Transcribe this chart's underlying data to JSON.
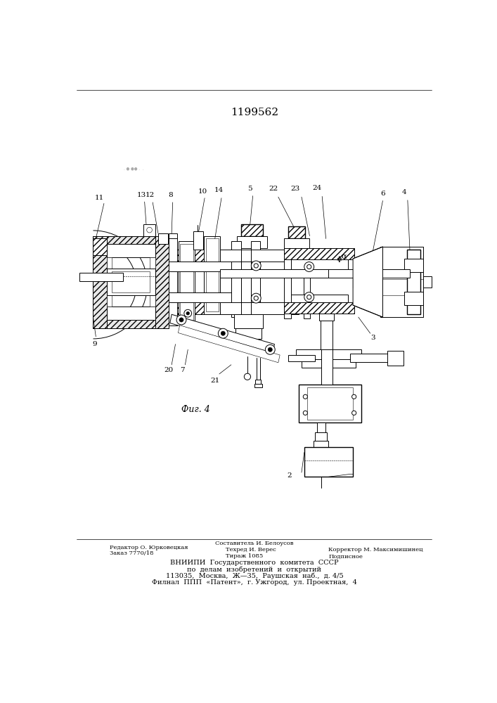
{
  "title": "1199562",
  "fig_label": "Фиг. 4",
  "background_color": "#ffffff",
  "title_fontsize": 11,
  "fig_label_fontsize": 9,
  "footer": [
    [
      85,
      856,
      "Редактор О. Юрковецкая",
      6,
      "left"
    ],
    [
      353,
      848,
      "Составитель И. Белоусов",
      6,
      "center"
    ],
    [
      85,
      866,
      "Заказ 7770/18",
      6,
      "left"
    ],
    [
      300,
      860,
      "Техред И. Верес",
      6,
      "left"
    ],
    [
      490,
      860,
      "Корректор М. Максимишинец",
      6,
      "left"
    ],
    [
      300,
      872,
      "Тираж 1085",
      6,
      "left"
    ],
    [
      490,
      872,
      "Подписное",
      6,
      "left"
    ],
    [
      353,
      884,
      "ВНИИПИ  Государственного  комитета  СССР",
      7,
      "center"
    ],
    [
      353,
      896,
      "по  делам  изобретений  и  открытий",
      7,
      "center"
    ],
    [
      353,
      908,
      "113035,  Москва,  Ж—35,  Раушская  наб.,  д. 4/5",
      7,
      "center"
    ],
    [
      353,
      920,
      "Филнал  ППП  «Патент»,  г. Ужгород,  ул. Проектная,  4",
      7,
      "center"
    ]
  ]
}
